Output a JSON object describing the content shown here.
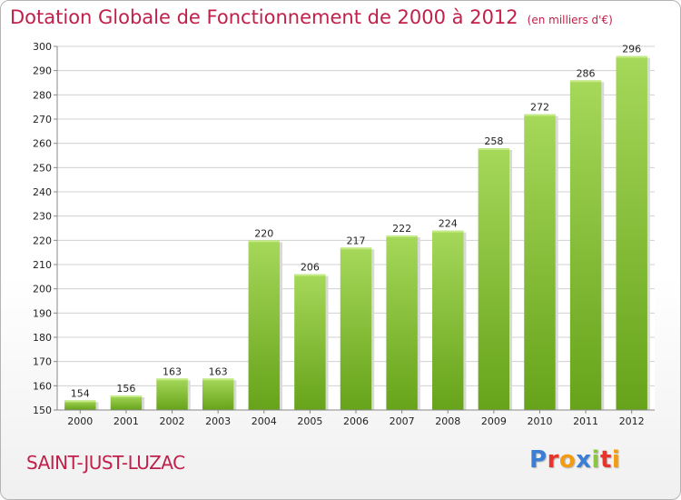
{
  "header": {
    "title": "Dotation Globale de Fonctionnement de 2000 à 2012",
    "subtitle": "(en milliers d'€)"
  },
  "footer": {
    "commune": "SAINT-JUST-LUZAC",
    "logo": "Proxiti",
    "logo_colors": [
      "#3a7fd5",
      "#e8342a",
      "#f39c12",
      "#3a7fd5",
      "#8cc63f",
      "#e8342a",
      "#f39c12"
    ]
  },
  "chart_data": {
    "type": "bar",
    "title": "Dotation Globale de Fonctionnement de 2000 à 2012",
    "xlabel": "",
    "ylabel": "",
    "categories": [
      "2000",
      "2001",
      "2002",
      "2003",
      "2004",
      "2005",
      "2006",
      "2007",
      "2008",
      "2009",
      "2010",
      "2011",
      "2012"
    ],
    "values": [
      154,
      156,
      163,
      163,
      220,
      206,
      217,
      222,
      224,
      258,
      272,
      286,
      296
    ],
    "ylim": [
      150,
      300
    ],
    "yticks": [
      150,
      160,
      170,
      180,
      190,
      200,
      210,
      220,
      230,
      240,
      250,
      260,
      270,
      280,
      290,
      300
    ],
    "grid": true,
    "colors": {
      "bar_light": "#a6d85a",
      "bar_dark": "#66a31a",
      "grid": "#d0d0d0",
      "axis": "#888888"
    }
  }
}
